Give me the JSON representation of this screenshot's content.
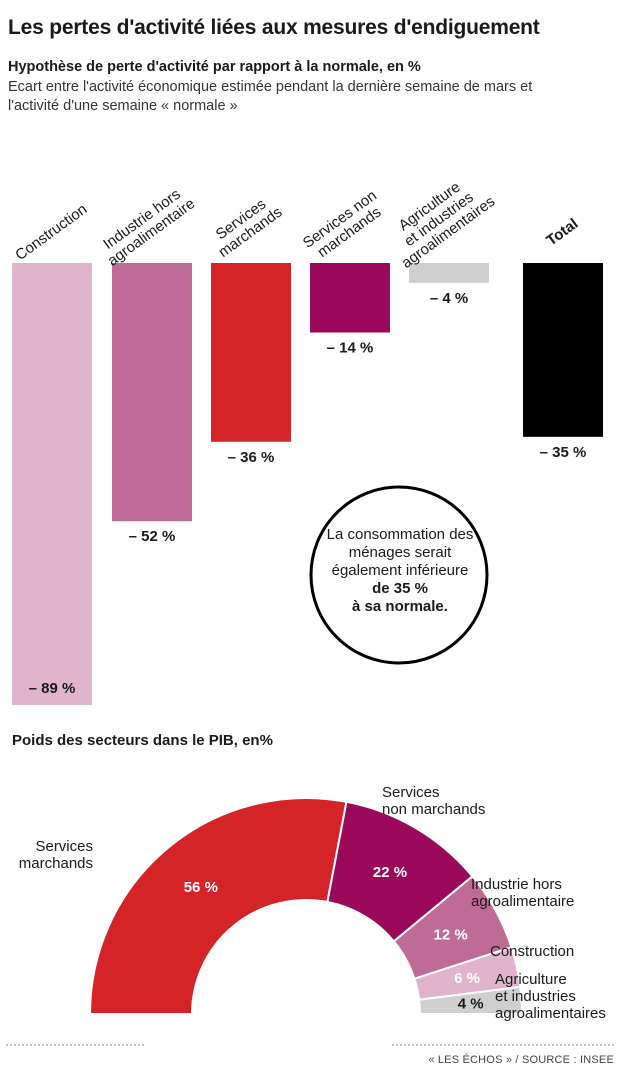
{
  "header": {
    "title": "Les pertes d'activité liées aux mesures d'endiguement"
  },
  "bar_section": {
    "subtitle": "Hypothèse de perte d'activité par rapport à la normale, en %",
    "description": "Ecart entre l'activité économique estimée pendant la dernière semaine de mars et l'activité d'une semaine « normale »"
  },
  "callout": {
    "line1": "La consommation des ménages serait également inférieure",
    "line2": "de 35 %",
    "line3": "à sa normale."
  },
  "pie_section": {
    "subtitle": "Poids des secteurs dans le PIB, en%"
  },
  "footer": {
    "source": "« LES ÉCHOS » / SOURCE : INSEE"
  },
  "chart_data": [
    {
      "type": "bar",
      "categories": [
        "Construction",
        "Industrie hors agroalimentaire",
        "Services marchands",
        "Services non marchands",
        "Agriculture et industries agroalimentaires",
        "Total"
      ],
      "values": [
        -89,
        -52,
        -36,
        -14,
        -4,
        -35
      ],
      "labels": [
        "– 89 %",
        "– 52 %",
        "– 36 %",
        "– 14 %",
        "– 4 %",
        "– 35 %"
      ],
      "colors": [
        "#e0b4cc",
        "#be6b95",
        "#d42428",
        "#9b0a5a",
        "#cfcfcf",
        "#000000"
      ],
      "ylim": [
        -89,
        0
      ]
    },
    {
      "type": "pie",
      "shape": "half-donut",
      "categories": [
        "Services marchands",
        "Services non marchands",
        "Industrie hors agroalimentaire",
        "Construction",
        "Agriculture et industries agroalimentaires"
      ],
      "values": [
        56,
        22,
        12,
        6,
        4
      ],
      "labels": [
        "56 %",
        "22 %",
        "12 %",
        "6 %",
        "4 %"
      ],
      "colors": [
        "#d42428",
        "#9b0a5a",
        "#be6b95",
        "#e0b4cc",
        "#cfcfcf"
      ],
      "label_colors": [
        "#ffffff",
        "#ffffff",
        "#ffffff",
        "#ffffff",
        "#1a1a1a"
      ]
    }
  ]
}
